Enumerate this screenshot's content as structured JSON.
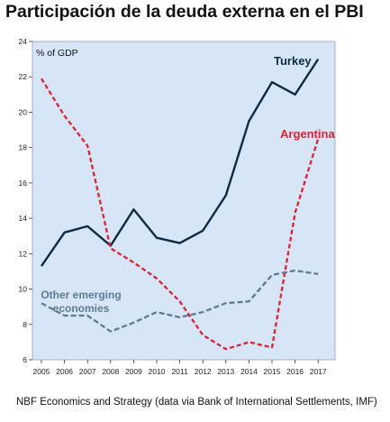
{
  "title": "Participación de la deuda externa en el PBI",
  "source": "NBF Economics and Strategy (data via Bank of International Settlements, IMF)",
  "chart_data": {
    "type": "line",
    "title": "Participación de la deuda externa en el PBI",
    "ylabel": "% of GDP",
    "xlabel": "",
    "x": [
      "2005",
      "2006",
      "2007",
      "2008",
      "2009",
      "2010",
      "2011",
      "2012",
      "2013",
      "2014",
      "2015",
      "2016",
      "2017"
    ],
    "ylim": [
      6,
      24
    ],
    "yticks": [
      6,
      8,
      10,
      12,
      14,
      16,
      18,
      20,
      22,
      24
    ],
    "grid": false,
    "background": "#d7e6f7",
    "series": [
      {
        "name": "Turkey",
        "color": "#0d2b45",
        "dash": "solid",
        "label_lines": [
          "Turkey"
        ],
        "values": [
          11.3,
          13.2,
          13.55,
          12.45,
          14.5,
          12.9,
          12.6,
          13.3,
          15.3,
          19.5,
          21.7,
          21.0,
          23.0
        ]
      },
      {
        "name": "Argentina",
        "color": "#e3202b",
        "dash": "dashed",
        "label_lines": [
          "Argentina"
        ],
        "values": [
          21.9,
          19.8,
          18.1,
          12.3,
          11.5,
          10.6,
          9.3,
          7.4,
          6.6,
          7.0,
          6.7,
          14.3,
          18.5
        ]
      },
      {
        "name": "Other emerging economies",
        "color": "#5d7b91",
        "dash": "dashed",
        "label_lines": [
          "Other emerging",
          "economies"
        ],
        "values": [
          9.2,
          8.5,
          8.5,
          7.6,
          8.1,
          8.7,
          8.4,
          8.7,
          9.2,
          9.3,
          10.8,
          11.05,
          10.85
        ]
      }
    ]
  }
}
